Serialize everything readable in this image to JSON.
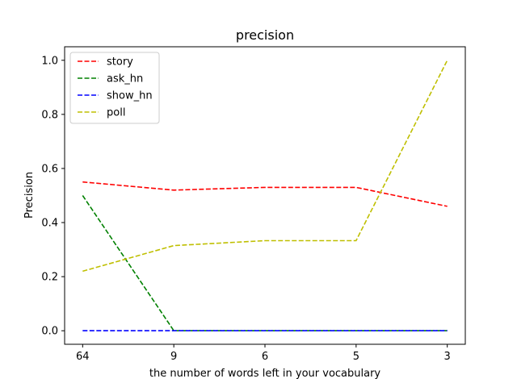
{
  "chart_data": {
    "type": "line",
    "title": "precision",
    "xlabel": "the number of words left in your vocabulary",
    "ylabel": "Precision",
    "categories": [
      "64",
      "9",
      "6",
      "5",
      "3"
    ],
    "ylim": [
      -0.05,
      1.05
    ],
    "yticks": [
      0.0,
      0.2,
      0.4,
      0.6,
      0.8,
      1.0
    ],
    "ytick_labels": [
      "0.0",
      "0.2",
      "0.4",
      "0.6",
      "0.8",
      "1.0"
    ],
    "grid": false,
    "legend_position": "upper-left",
    "series": [
      {
        "name": "story",
        "color": "#ff0000",
        "values": [
          0.55,
          0.52,
          0.53,
          0.53,
          0.46
        ]
      },
      {
        "name": "ask_hn",
        "color": "#008000",
        "values": [
          0.5,
          0.0,
          0.0,
          0.0,
          0.0
        ]
      },
      {
        "name": "show_hn",
        "color": "#0000ff",
        "values": [
          0.0,
          0.0,
          0.0,
          0.0,
          0.0
        ]
      },
      {
        "name": "poll",
        "color": "#bfbf00",
        "values": [
          0.22,
          0.315,
          0.333,
          0.333,
          1.0
        ]
      }
    ]
  }
}
